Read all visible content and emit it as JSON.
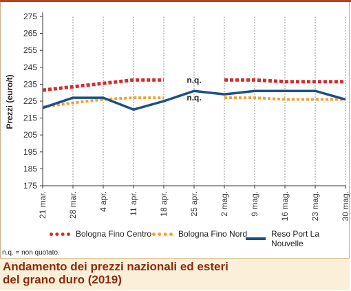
{
  "chart_data": {
    "type": "line",
    "ylabel": "Prezzi (euro/t)",
    "ylim": [
      175,
      275
    ],
    "yticks": [
      175,
      185,
      195,
      205,
      215,
      225,
      235,
      245,
      255,
      265,
      275
    ],
    "categories": [
      "21 mar.",
      "28 mar.",
      "4 apr.",
      "11 apr.",
      "18 apr.",
      "25 apr.",
      "2 mag.",
      "9 mag.",
      "16 mag.",
      "23 mag.",
      "30 mag."
    ],
    "grid": "vertical dashed",
    "series": [
      {
        "name": "Bologna Fino Centro",
        "color": "#d62b2b",
        "style": "dotted-thick",
        "values": [
          231.5,
          233.5,
          235.5,
          237.5,
          237.5,
          null,
          237.5,
          237.5,
          236.5,
          236.5,
          236.5
        ]
      },
      {
        "name": "Bologna Fino Nord",
        "color": "#f2a12e",
        "style": "dotted",
        "values": [
          221.5,
          224,
          226,
          227,
          227,
          null,
          227,
          227,
          226,
          226,
          226
        ]
      },
      {
        "name": "Reso Port La Nouvelle",
        "color": "#1b4f8a",
        "style": "solid",
        "values": [
          221,
          227,
          227,
          220,
          225,
          231,
          229,
          231,
          231,
          231,
          226
        ]
      }
    ],
    "annotations": [
      {
        "text": "n.q.",
        "x": "25 apr.",
        "y": 237.5
      },
      {
        "text": "n.q.",
        "x": "25 apr.",
        "y": 227
      }
    ],
    "legend_position": "bottom"
  },
  "note": "n.q. = non quotato.",
  "caption": {
    "line1": "Andamento dei prezzi nazionali ed esteri",
    "line2": "del grano duro (2019)"
  }
}
